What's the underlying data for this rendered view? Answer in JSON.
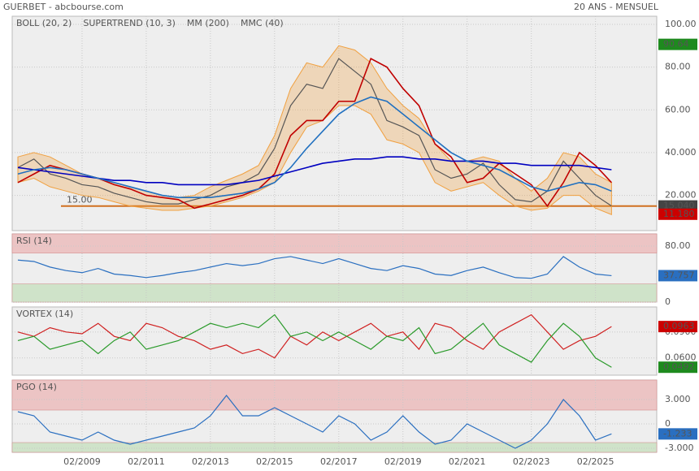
{
  "header": {
    "source": "GUERBET - abcbourse.com",
    "period": "20 ANS - MENSUEL"
  },
  "chart_data": [
    {
      "type": "line",
      "ylim": [
        3.5,
        103.8
      ],
      "yticks": [
        {
          "value": 100,
          "label": "100.00"
        },
        {
          "value": 80,
          "label": "80.00"
        },
        {
          "value": 60,
          "label": "60.00"
        },
        {
          "value": 40,
          "label": "40.000"
        },
        {
          "value": 20,
          "label": "20.000"
        }
      ],
      "grid": true,
      "series": [
        {
          "name": "BOLL (20, 2)",
          "kind": "band",
          "color": "#f0a040",
          "values": [
            38,
            40,
            38,
            34,
            30,
            28,
            26,
            24,
            22,
            20,
            19,
            20,
            24,
            27,
            30,
            34,
            48,
            70,
            82,
            80,
            90,
            88,
            82,
            70,
            62,
            56,
            44,
            36,
            36,
            38,
            36,
            28,
            22,
            28,
            40,
            38,
            30,
            26
          ],
          "lower": [
            26,
            28,
            24,
            22,
            20,
            19,
            17,
            15,
            14,
            13,
            13,
            14,
            15,
            17,
            19,
            22,
            26,
            40,
            52,
            55,
            62,
            62,
            58,
            46,
            44,
            40,
            26,
            22,
            24,
            26,
            20,
            15,
            13,
            14,
            20,
            20,
            14,
            11
          ]
        },
        {
          "color": "#555555",
          "values": [
            33,
            37,
            30,
            28,
            25,
            24,
            21,
            19,
            17,
            16,
            16,
            18,
            20,
            24,
            26,
            30,
            42,
            62,
            72,
            70,
            84,
            78,
            72,
            55,
            52,
            48,
            32,
            28,
            30,
            35,
            25,
            18,
            17,
            22,
            36,
            28,
            20,
            15.04
          ]
        },
        {
          "name": "SUPERTREND (10, 3)",
          "color": "#c00000",
          "values": [
            26,
            30,
            34,
            32,
            30,
            28,
            25,
            23,
            20,
            19,
            18,
            14,
            16,
            18,
            20,
            23,
            30,
            48,
            55,
            55,
            64,
            64,
            84,
            80,
            70,
            62,
            44,
            38,
            26,
            28,
            35,
            30,
            25,
            15,
            26,
            40,
            34,
            26
          ]
        },
        {
          "name": "MM (200)",
          "color": "#0000c0",
          "values": [
            33,
            32,
            31,
            30,
            29,
            28,
            27,
            27,
            26,
            26,
            25,
            25,
            25,
            25,
            26,
            27,
            29,
            31,
            33,
            35,
            36,
            37,
            37,
            38,
            38,
            37,
            37,
            36,
            36,
            36,
            35,
            35,
            34,
            34,
            34,
            34,
            33,
            32
          ]
        },
        {
          "name": "MMC (40)",
          "color": "#2070c0",
          "values": [
            30,
            32,
            33,
            32,
            30,
            28,
            26,
            24,
            22,
            20,
            19,
            19,
            19,
            20,
            21,
            23,
            26,
            33,
            42,
            50,
            58,
            63,
            66,
            64,
            58,
            52,
            46,
            40,
            36,
            34,
            32,
            28,
            24,
            22,
            24,
            26,
            25,
            22
          ]
        }
      ],
      "hline": {
        "value": 15,
        "label": "15.00",
        "color": "#d07020"
      },
      "badges": [
        {
          "value": 90.64,
          "color": "#1e8a1e"
        },
        {
          "value": 15.04,
          "label": "15.040",
          "color": "#444444"
        },
        {
          "value": 11.18,
          "label": "11.180",
          "color": "#cc0000"
        }
      ]
    },
    {
      "type": "line",
      "title": "RSI (14)",
      "title_color": "#2a6fc0",
      "ylim": [
        0,
        97.4
      ],
      "yticks": [
        {
          "value": 80,
          "label": "80.00"
        },
        0
      ],
      "grid": true,
      "zones": [
        {
          "from": 70,
          "to": 97.4,
          "color": "#ecc4c4"
        },
        {
          "from": 0,
          "to": 26,
          "color": "#cfe3c9"
        }
      ],
      "series": [
        {
          "color": "#2a6fc0",
          "values": [
            60,
            58,
            50,
            45,
            42,
            48,
            40,
            38,
            35,
            38,
            42,
            45,
            50,
            55,
            52,
            55,
            62,
            65,
            60,
            55,
            62,
            55,
            48,
            45,
            52,
            48,
            40,
            38,
            45,
            50,
            42,
            35,
            34,
            40,
            65,
            50,
            40,
            37.757
          ]
        }
      ],
      "badges": [
        {
          "value": 37.757,
          "color": "#2a6fc0"
        }
      ]
    },
    {
      "type": "line",
      "title": "VORTEX (14)",
      "title_color": "#1e8a1e",
      "ylim": [
        0.04,
        0.119
      ],
      "yticks": [
        {
          "value": 0.09,
          "label": "0.0900"
        },
        {
          "value": 0.06,
          "label": "0.0600"
        }
      ],
      "grid": true,
      "series": [
        {
          "color": "#d02020",
          "values": [
            0.09,
            0.085,
            0.095,
            0.09,
            0.088,
            0.1,
            0.085,
            0.08,
            0.1,
            0.095,
            0.085,
            0.08,
            0.07,
            0.075,
            0.065,
            0.07,
            0.06,
            0.085,
            0.075,
            0.09,
            0.08,
            0.09,
            0.1,
            0.085,
            0.09,
            0.07,
            0.1,
            0.095,
            0.08,
            0.07,
            0.09,
            0.1,
            0.11,
            0.09,
            0.07,
            0.08,
            0.085,
            0.0963
          ]
        },
        {
          "color": "#2a9a2a",
          "values": [
            0.08,
            0.085,
            0.07,
            0.075,
            0.08,
            0.065,
            0.08,
            0.09,
            0.07,
            0.075,
            0.08,
            0.09,
            0.1,
            0.095,
            0.1,
            0.095,
            0.11,
            0.085,
            0.09,
            0.08,
            0.09,
            0.08,
            0.07,
            0.085,
            0.08,
            0.095,
            0.065,
            0.07,
            0.085,
            0.1,
            0.075,
            0.065,
            0.055,
            0.08,
            0.1,
            0.085,
            0.06,
            0.0492
          ]
        }
      ],
      "badges": [
        {
          "value": 0.0963,
          "color": "#cc0000"
        },
        {
          "value": 0.0492,
          "color": "#1e8a1e"
        }
      ]
    },
    {
      "type": "line",
      "title": "PGO (14)",
      "title_color": "#2a6fc0",
      "ylim": [
        -3.5,
        5.4
      ],
      "yticks": [
        {
          "value": 3,
          "label": "3.000"
        },
        0,
        {
          "value": -3,
          "label": "-3.000"
        }
      ],
      "grid": true,
      "zones": [
        {
          "from": 1.7,
          "to": 5.4,
          "color": "#ecc4c4"
        },
        {
          "from": -3.5,
          "to": -2.3,
          "color": "#cfe3c9"
        }
      ],
      "categories": [
        null,
        null,
        null,
        null,
        "02/2009",
        null,
        null,
        null,
        "02/2011",
        null,
        null,
        null,
        "02/2013",
        null,
        null,
        null,
        "02/2015",
        null,
        null,
        null,
        "02/2017",
        null,
        null,
        null,
        "02/2019",
        null,
        null,
        null,
        "02/2021",
        null,
        null,
        null,
        "02/2023",
        null,
        null,
        null,
        "02/2025",
        null
      ],
      "series": [
        {
          "color": "#2a6fc0",
          "values": [
            1.5,
            1,
            -1,
            -1.5,
            -2,
            -1,
            -2,
            -2.5,
            -2,
            -1.5,
            -1,
            -0.5,
            1,
            3.5,
            1,
            1,
            2,
            1,
            0,
            -1,
            1,
            0,
            -2,
            -1,
            1,
            -1,
            -2.5,
            -2,
            0,
            -1,
            -2,
            -3,
            -2,
            0,
            3,
            1,
            -2,
            -1.233
          ]
        }
      ],
      "badges": [
        {
          "value": -1.233,
          "color": "#2a6fc0"
        }
      ]
    }
  ]
}
